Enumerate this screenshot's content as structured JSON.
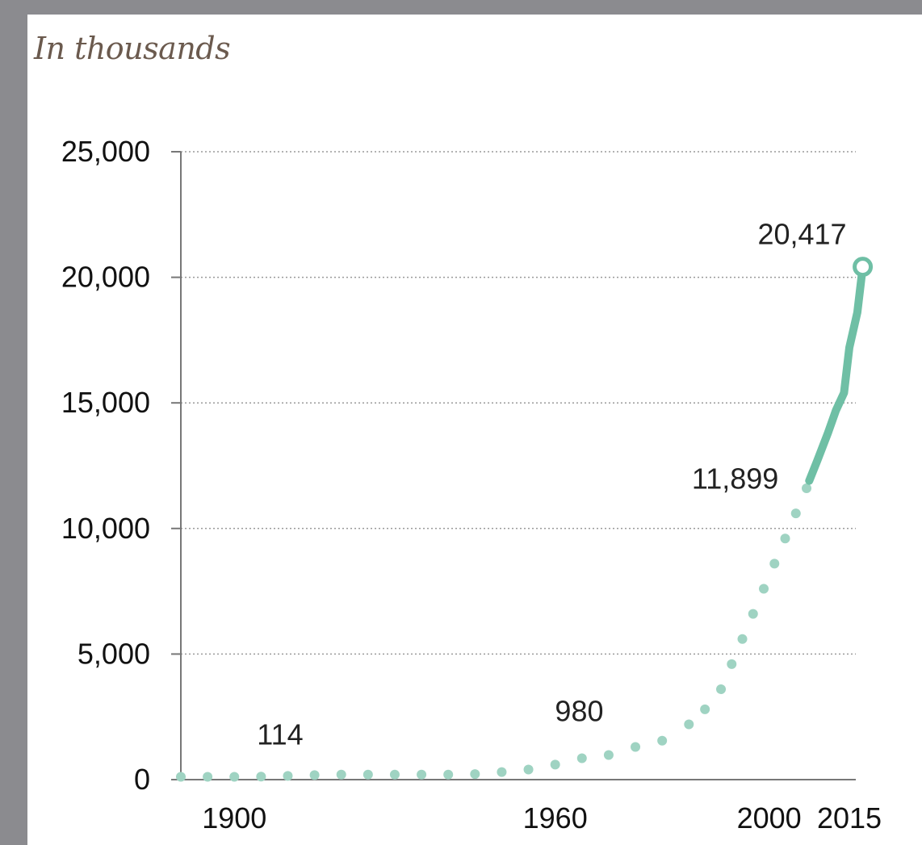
{
  "chart_data": {
    "type": "line",
    "title": "",
    "subtitle": "In thousands",
    "xlabel": "",
    "ylabel": "",
    "xlim": [
      1890,
      2015
    ],
    "ylim": [
      0,
      25000
    ],
    "grid": true,
    "y_ticks": [
      {
        "value": 0,
        "label": "0"
      },
      {
        "value": 5000,
        "label": "5,000"
      },
      {
        "value": 10000,
        "label": "10,000"
      },
      {
        "value": 15000,
        "label": "15,000"
      },
      {
        "value": 20000,
        "label": "20,000"
      },
      {
        "value": 25000,
        "label": "25,000"
      }
    ],
    "x_ticks": [
      {
        "value": 1900,
        "label": "1900"
      },
      {
        "value": 1960,
        "label": "1960"
      },
      {
        "value": 2000,
        "label": "2000"
      },
      {
        "value": 2015,
        "label": "2015"
      }
    ],
    "series": [
      {
        "style": "dotted",
        "color": "#9fd3c2",
        "points": [
          [
            1890,
            114
          ],
          [
            1895,
            114
          ],
          [
            1900,
            114
          ],
          [
            1905,
            120
          ],
          [
            1910,
            150
          ],
          [
            1915,
            180
          ],
          [
            1920,
            200
          ],
          [
            1925,
            200
          ],
          [
            1930,
            200
          ],
          [
            1935,
            200
          ],
          [
            1940,
            200
          ],
          [
            1945,
            220
          ],
          [
            1950,
            300
          ],
          [
            1955,
            400
          ],
          [
            1960,
            600
          ],
          [
            1965,
            850
          ],
          [
            1970,
            980
          ],
          [
            1975,
            1300
          ],
          [
            1980,
            1550
          ],
          [
            1985,
            2200
          ],
          [
            1988,
            2800
          ],
          [
            1991,
            3600
          ],
          [
            1993,
            4600
          ],
          [
            1995,
            5600
          ],
          [
            1997,
            6600
          ],
          [
            1999,
            7600
          ],
          [
            2001,
            8600
          ],
          [
            2003,
            9600
          ],
          [
            2005,
            10600
          ],
          [
            2007,
            11600
          ]
        ]
      },
      {
        "style": "solid",
        "color": "#6fbfa5",
        "points": [
          [
            2007.5,
            11899
          ],
          [
            2009,
            12700
          ],
          [
            2011,
            13800
          ],
          [
            2012.5,
            14700
          ],
          [
            2014,
            15400
          ],
          [
            2015,
            17200
          ],
          [
            2016.5,
            18600
          ],
          [
            2017.5,
            20417
          ]
        ],
        "end_marker": "open-circle"
      }
    ],
    "annotations": [
      {
        "text": "114",
        "x": 1900,
        "y": 114
      },
      {
        "text": "980",
        "x": 1966,
        "y": 980
      },
      {
        "text": "11,899",
        "x": 2007.5,
        "y": 11899
      },
      {
        "text": "20,417",
        "x": 2017.5,
        "y": 20417
      }
    ]
  }
}
